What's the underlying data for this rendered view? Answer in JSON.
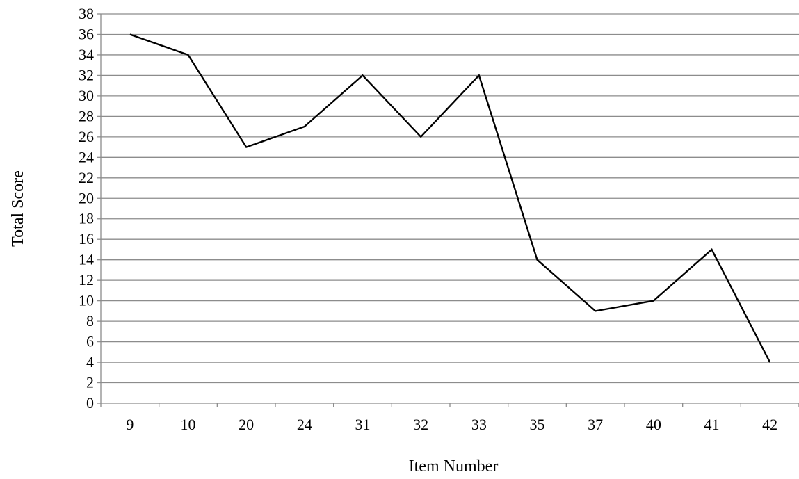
{
  "chart_data": {
    "type": "line",
    "title": "",
    "xlabel": "Item Number",
    "ylabel": "Total Score",
    "categories": [
      "9",
      "10",
      "20",
      "24",
      "31",
      "32",
      "33",
      "35",
      "37",
      "40",
      "41",
      "42"
    ],
    "series": [
      {
        "values": [
          36,
          34,
          25,
          27,
          32,
          26,
          32,
          14,
          9,
          10,
          15,
          4
        ]
      }
    ],
    "ylim": [
      0,
      38
    ],
    "yticks": [
      "0",
      "2",
      "4",
      "6",
      "8",
      "10",
      "12",
      "14",
      "16",
      "18",
      "20",
      "22",
      "24",
      "26",
      "28",
      "30",
      "32",
      "34",
      "36",
      "38"
    ],
    "grid": true,
    "legend": "none",
    "colors": {
      "line": "#000000",
      "grid": "#8c8c8c",
      "axis": "#8c8c8c"
    }
  }
}
